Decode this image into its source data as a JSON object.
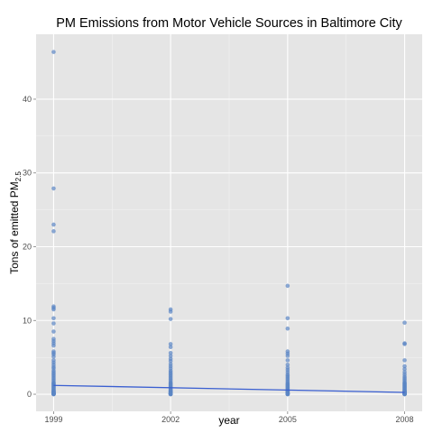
{
  "chart_data": {
    "type": "scatter",
    "title": "PM Emissions from Motor Vehicle Sources in Baltimore City",
    "xlabel": "year",
    "ylabel": {
      "text": "Tons of emitted PM",
      "subscript": "2.5"
    },
    "x_ticks": [
      1999,
      2002,
      2005,
      2008
    ],
    "y_ticks": [
      0,
      10,
      20,
      30,
      40
    ],
    "xlim": [
      1998.55,
      2008.45
    ],
    "ylim": [
      -2.32,
      48.8
    ],
    "grid": true,
    "legend": "none",
    "point_color": "#5b86c4",
    "line_color": "#3a5fd1",
    "background_color": "#e5e5e5",
    "grid_color": "#ffffff",
    "series": [
      {
        "type": "points",
        "points": {
          "1999": [
            46.4,
            27.9,
            23.0,
            22.1,
            11.9,
            11.7,
            11.5,
            10.3,
            9.6,
            8.5,
            7.5,
            7.2,
            6.9,
            6.6,
            5.8,
            5.6,
            5.4,
            5.1,
            4.6,
            4.3,
            4.0,
            3.7,
            3.5,
            3.2,
            3.0,
            2.8,
            2.6,
            2.4,
            2.2,
            2.0,
            1.8,
            1.6,
            1.5,
            1.4,
            1.3,
            1.2,
            1.1,
            1.0,
            0.9,
            0.8,
            0.7,
            0.6,
            0.5,
            0.45,
            0.4,
            0.35,
            0.3,
            0.25,
            0.2,
            0.15,
            0.12,
            0.1,
            0.08,
            0.06,
            0.05,
            0.04,
            0.03,
            0.02,
            0.01,
            0.0
          ],
          "2002": [
            11.5,
            11.2,
            10.2,
            6.8,
            6.4,
            5.6,
            5.2,
            4.8,
            4.5,
            4.1,
            3.8,
            3.5,
            3.2,
            3.0,
            2.8,
            2.6,
            2.4,
            2.2,
            2.0,
            1.8,
            1.6,
            1.5,
            1.4,
            1.3,
            1.2,
            1.1,
            1.0,
            0.9,
            0.8,
            0.7,
            0.6,
            0.5,
            0.45,
            0.4,
            0.35,
            0.3,
            0.25,
            0.2,
            0.15,
            0.12,
            0.1,
            0.08,
            0.06,
            0.05,
            0.04,
            0.03,
            0.02,
            0.01,
            0.0
          ],
          "2005": [
            14.7,
            10.3,
            8.9,
            5.8,
            5.5,
            5.2,
            4.6,
            4.0,
            3.6,
            3.3,
            3.0,
            2.7,
            2.5,
            2.3,
            2.1,
            1.9,
            1.7,
            1.5,
            1.4,
            1.3,
            1.2,
            1.1,
            1.0,
            0.9,
            0.8,
            0.7,
            0.6,
            0.5,
            0.45,
            0.4,
            0.35,
            0.3,
            0.25,
            0.2,
            0.15,
            0.12,
            0.1,
            0.08,
            0.06,
            0.05,
            0.04,
            0.03,
            0.02,
            0.01,
            0.0
          ],
          "2008": [
            9.7,
            6.9,
            6.8,
            4.6,
            3.8,
            3.4,
            3.0,
            2.7,
            2.4,
            2.2,
            2.0,
            1.8,
            1.6,
            1.5,
            1.4,
            1.3,
            1.2,
            1.1,
            1.0,
            0.9,
            0.8,
            0.7,
            0.6,
            0.5,
            0.45,
            0.4,
            0.35,
            0.3,
            0.25,
            0.2,
            0.15,
            0.12,
            0.1,
            0.08,
            0.06,
            0.05,
            0.04,
            0.03,
            0.02,
            0.01,
            0.0
          ]
        }
      },
      {
        "type": "trend_line",
        "x": [
          1999,
          2008
        ],
        "y": [
          1.2,
          0.25
        ]
      }
    ]
  }
}
